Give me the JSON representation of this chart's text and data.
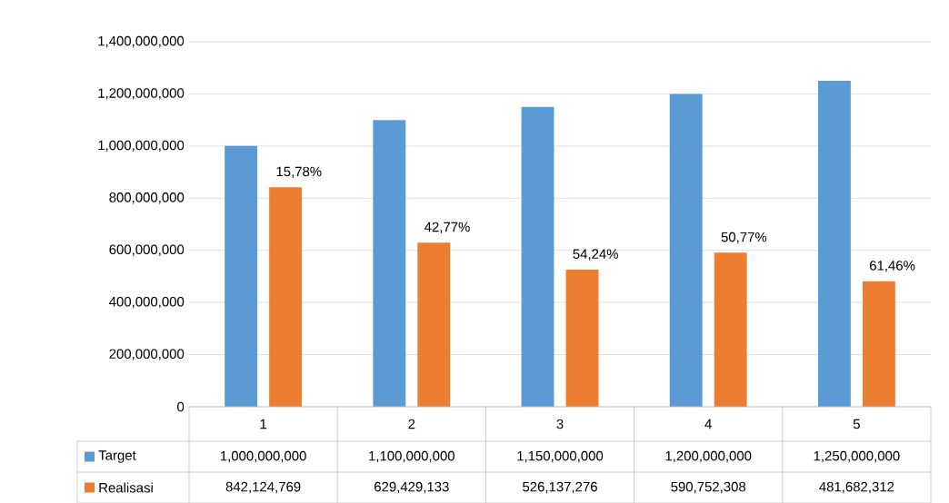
{
  "chart_data": {
    "type": "bar",
    "categories": [
      "1",
      "2",
      "3",
      "4",
      "5"
    ],
    "series": [
      {
        "name": "Target",
        "color": "#5b9bd5",
        "values": [
          1000000000,
          1100000000,
          1150000000,
          1200000000,
          1250000000
        ],
        "value_labels": [
          "1,000,000,000",
          "1,100,000,000",
          "1,150,000,000",
          "1,200,000,000",
          "1,250,000,000"
        ]
      },
      {
        "name": "Realisasi",
        "color": "#ed7d31",
        "values": [
          842124769,
          629429133,
          526137276,
          590752308,
          481682312
        ],
        "value_labels": [
          "842,124,769",
          "629,429,133",
          "526,137,276",
          "590,752,308",
          "481,682,312"
        ]
      }
    ],
    "annotations": [
      "15,78%",
      "42,77%",
      "54,24%",
      "50,77%",
      "61,46%"
    ],
    "ylim": [
      0,
      1400000000
    ],
    "yticks": [
      {
        "value": 0,
        "label": "0"
      },
      {
        "value": 200000000,
        "label": "200,000,000"
      },
      {
        "value": 400000000,
        "label": "400,000,000"
      },
      {
        "value": 600000000,
        "label": "600,000,000"
      },
      {
        "value": 800000000,
        "label": "800,000,000"
      },
      {
        "value": 1000000000,
        "label": "1,000,000,000"
      },
      {
        "value": 1200000000,
        "label": "1,200,000,000"
      },
      {
        "value": 1400000000,
        "label": "1,400,000,000"
      }
    ],
    "grid": "y",
    "legend": "bottom"
  }
}
